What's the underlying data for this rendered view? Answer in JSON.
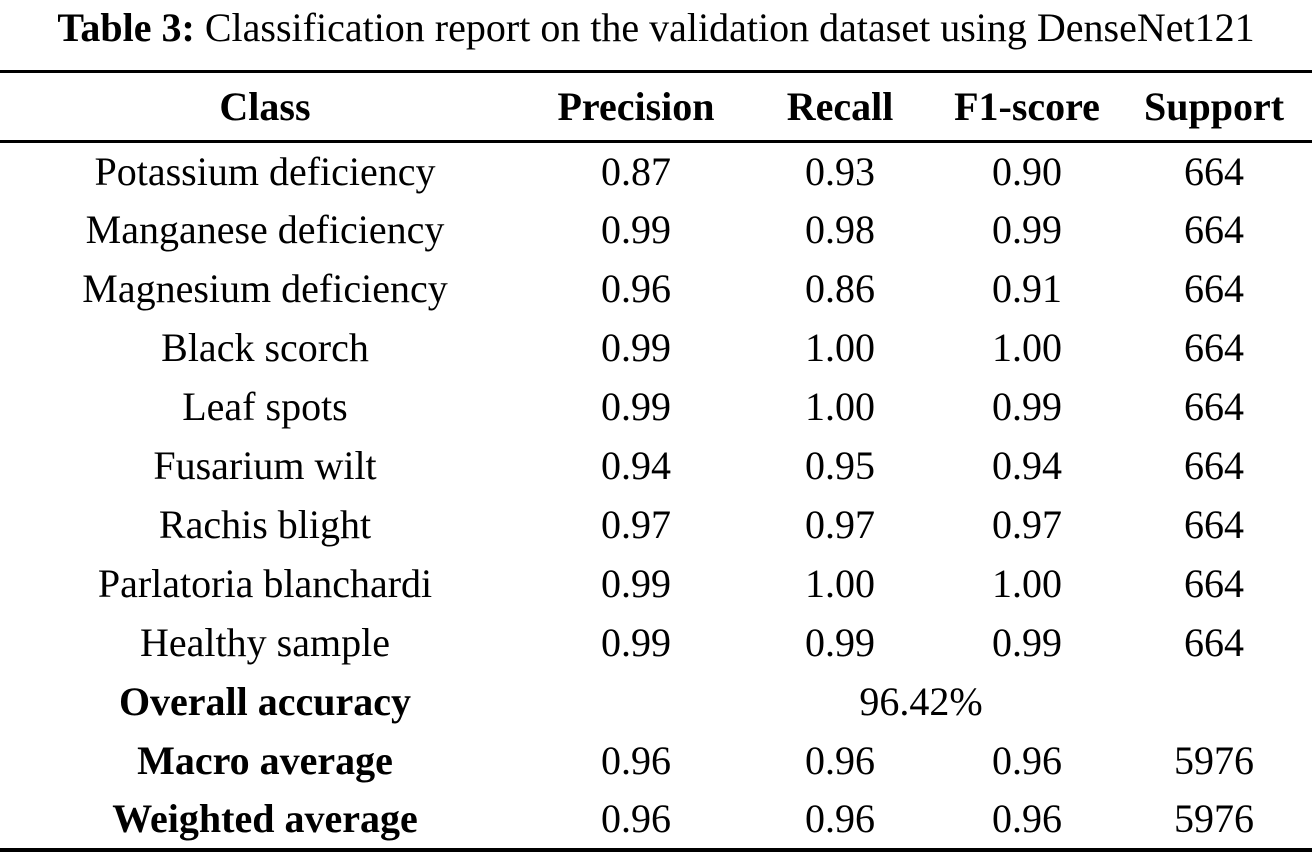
{
  "page": {
    "background": "#ffffff",
    "text_color": "#000000"
  },
  "caption": {
    "label": "Table 3:",
    "text": "Classification report on the validation dataset using DenseNet121"
  },
  "table": {
    "headers": [
      "Class",
      "Precision",
      "Recall",
      "F1-score",
      "Support"
    ],
    "rows": [
      {
        "class": "Potassium deficiency",
        "precision": "0.87",
        "recall": "0.93",
        "f1": "0.90",
        "support": "664"
      },
      {
        "class": "Manganese deficiency",
        "precision": "0.99",
        "recall": "0.98",
        "f1": "0.99",
        "support": "664"
      },
      {
        "class": "Magnesium deficiency",
        "precision": "0.96",
        "recall": "0.86",
        "f1": "0.91",
        "support": "664"
      },
      {
        "class": "Black scorch",
        "precision": "0.99",
        "recall": "1.00",
        "f1": "1.00",
        "support": "664"
      },
      {
        "class": "Leaf spots",
        "precision": "0.99",
        "recall": "1.00",
        "f1": "0.99",
        "support": "664"
      },
      {
        "class": "Fusarium wilt",
        "precision": "0.94",
        "recall": "0.95",
        "f1": "0.94",
        "support": "664"
      },
      {
        "class": "Rachis blight",
        "precision": "0.97",
        "recall": "0.97",
        "f1": "0.97",
        "support": "664"
      },
      {
        "class": "Parlatoria blanchardi",
        "precision": "0.99",
        "recall": "1.00",
        "f1": "1.00",
        "support": "664"
      },
      {
        "class": "Healthy sample",
        "precision": "0.99",
        "recall": "0.99",
        "f1": "0.99",
        "support": "664"
      }
    ],
    "overall": {
      "label": "Overall accuracy",
      "value": "96.42%"
    },
    "averages": [
      {
        "label": "Macro average",
        "precision": "0.96",
        "recall": "0.96",
        "f1": "0.96",
        "support": "5976"
      },
      {
        "label": "Weighted average",
        "precision": "0.96",
        "recall": "0.96",
        "f1": "0.96",
        "support": "5976"
      }
    ]
  }
}
